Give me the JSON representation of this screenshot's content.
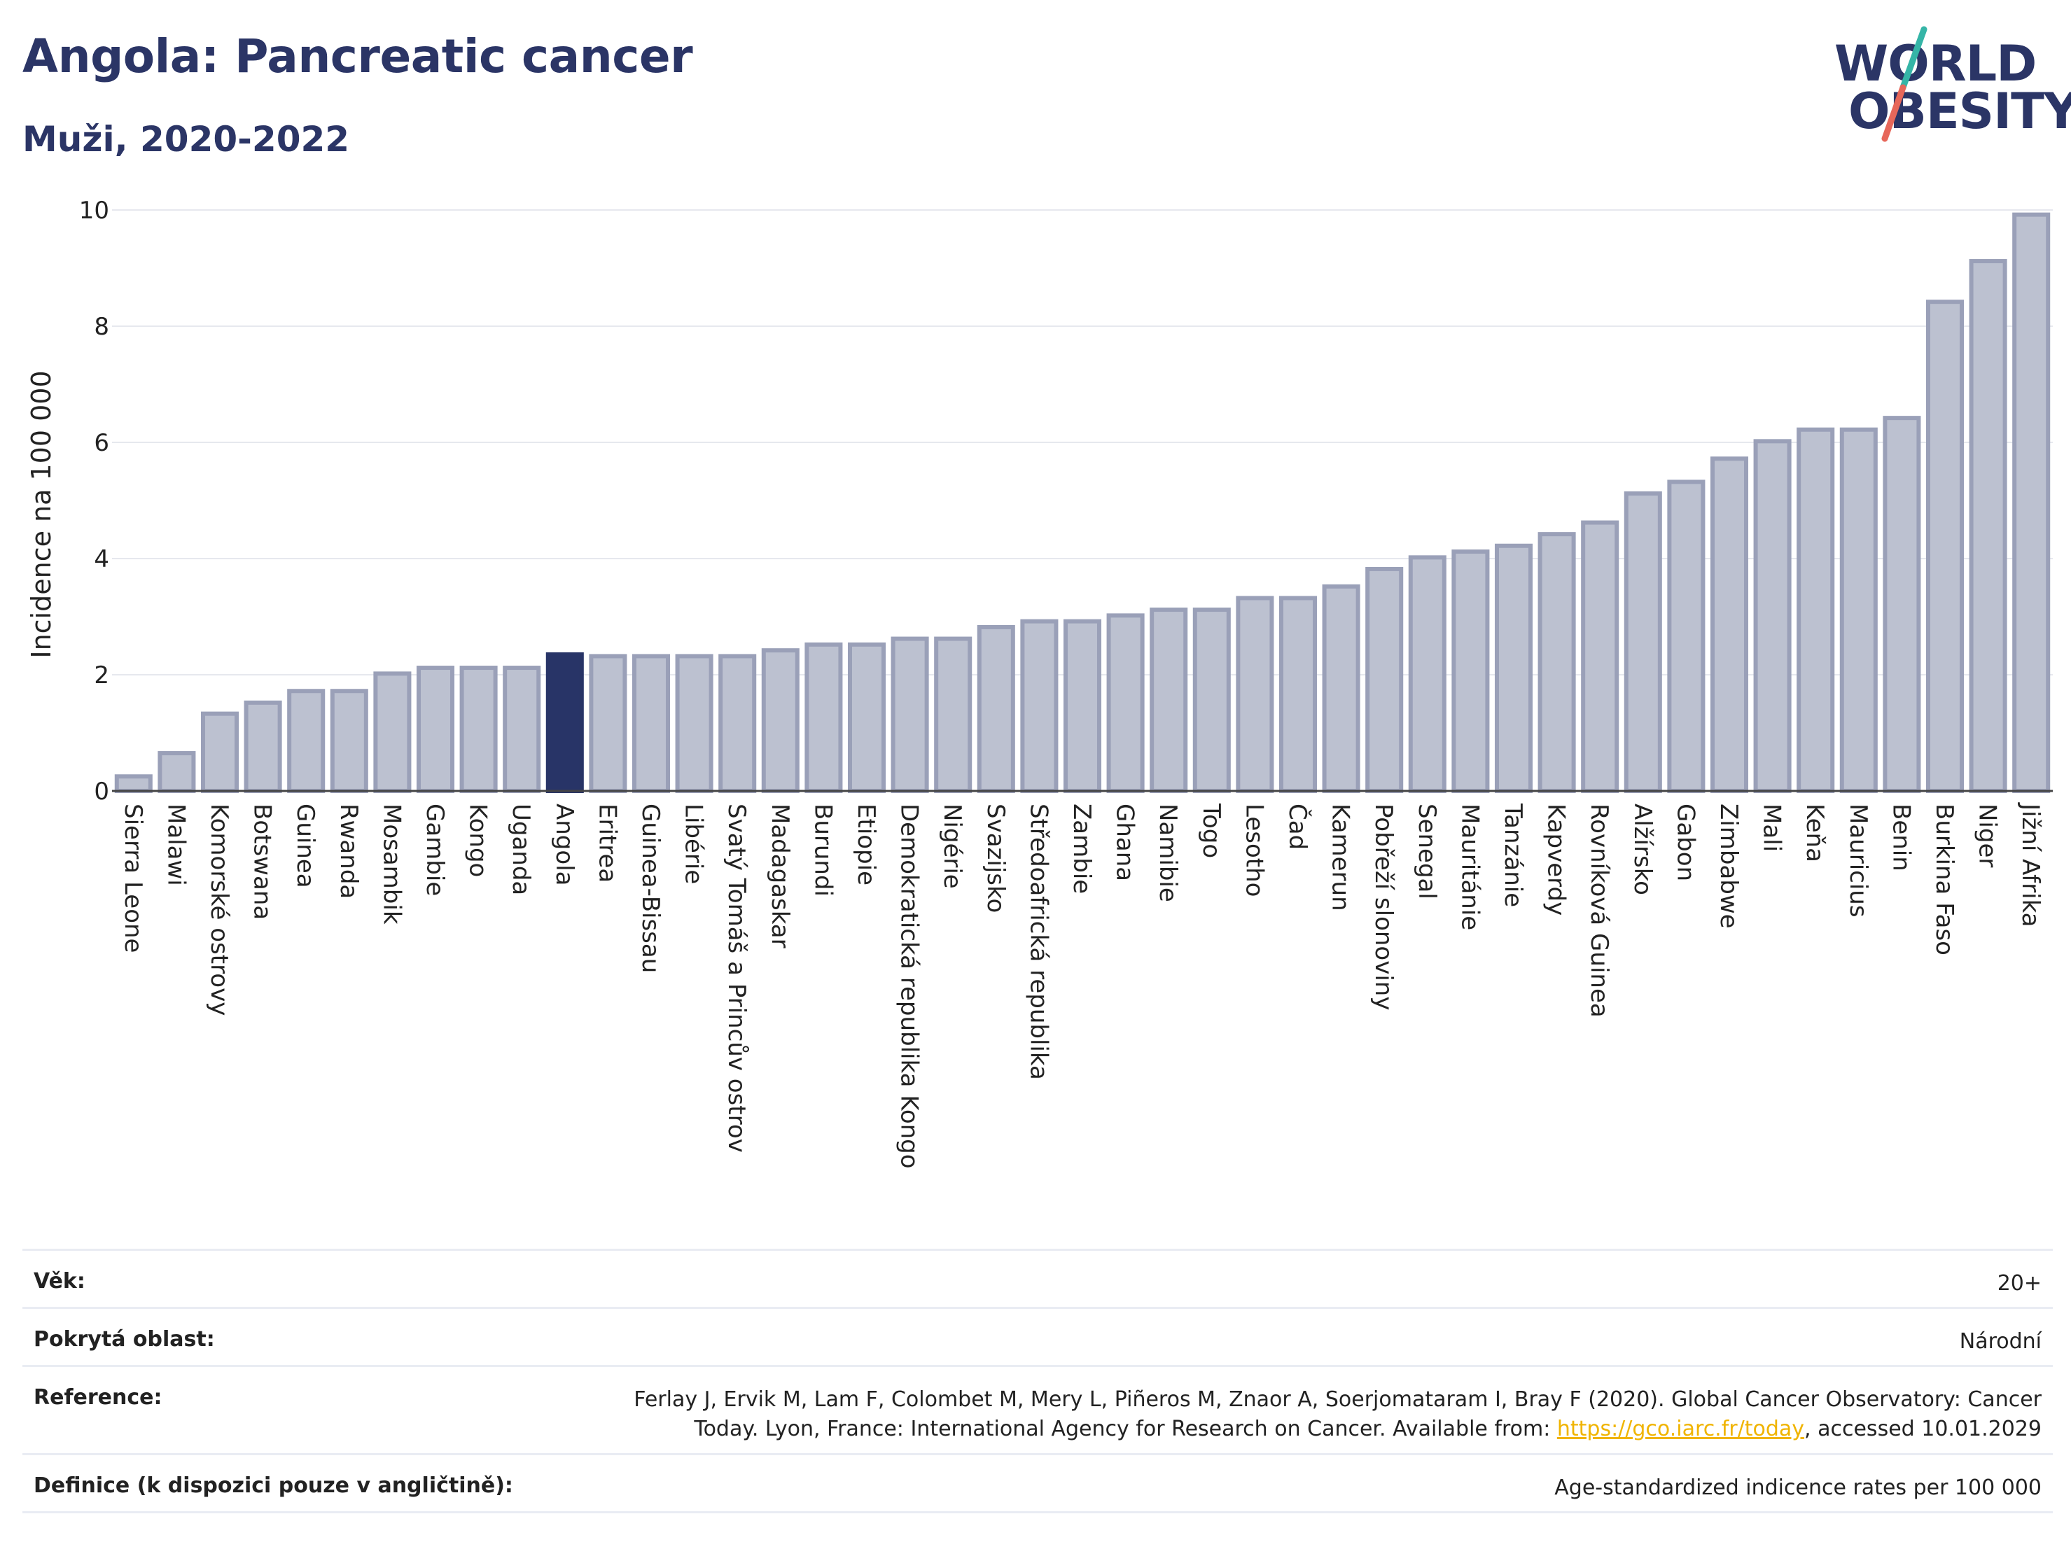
{
  "title": "Angola: Pancreatic cancer",
  "subtitle": "Muži, 2020-2022",
  "logo": {
    "line1": "WORLD",
    "line2": "OBESITY",
    "colors": {
      "text": "#2b3566",
      "slash_top": "#35b5a7",
      "slash_bottom": "#e7675a"
    }
  },
  "colors": {
    "bar": "#bcc1d0",
    "bar_border": "#9aa0b8",
    "highlight": "#283467",
    "grid": "#e6e8ee"
  },
  "chart_data": {
    "type": "bar",
    "ylabel": "Incidence na 100 000",
    "xlabel": "",
    "ylim": [
      0,
      10
    ],
    "yticks": [
      "0",
      "2",
      "4",
      "6",
      "8",
      "10"
    ],
    "grid": true,
    "highlight": "Angola",
    "categories": [
      "Sierra Leone",
      "Malawi",
      "Komorské ostrovy",
      "Botswana",
      "Guinea",
      "Rwanda",
      "Mosambik",
      "Gambie",
      "Kongo",
      "Uganda",
      "Angola",
      "Eritrea",
      "Guinea-Bissau",
      "Libérie",
      "Svatý Tomáš a Princův ostrov",
      "Madagaskar",
      "Burundi",
      "Etiopie",
      "Demokratická republika Kongo",
      "Nigérie",
      "Svazijsko",
      "Středoafrická republika",
      "Zambie",
      "Ghana",
      "Namibie",
      "Togo",
      "Lesotho",
      "Čad",
      "Kamerun",
      "Pobřeží slonoviny",
      "Senegal",
      "Mauritánie",
      "Tanzánie",
      "Kapverdy",
      "Rovníková Guinea",
      "Alžírsko",
      "Gabon",
      "Zimbabwe",
      "Mali",
      "Keňa",
      "Mauricius",
      "Benin",
      "Burkina Faso",
      "Niger",
      "Jižní Afrika"
    ],
    "values": [
      0.25,
      0.65,
      1.33,
      1.52,
      1.72,
      1.72,
      2.02,
      2.12,
      2.12,
      2.12,
      2.35,
      2.32,
      2.32,
      2.32,
      2.32,
      2.42,
      2.52,
      2.52,
      2.62,
      2.62,
      2.82,
      2.92,
      2.92,
      3.02,
      3.12,
      3.12,
      3.32,
      3.32,
      3.52,
      3.82,
      4.02,
      4.12,
      4.22,
      4.42,
      4.62,
      5.12,
      5.32,
      5.72,
      6.02,
      6.22,
      6.22,
      6.42,
      8.42,
      9.12,
      9.92
    ]
  },
  "info": [
    {
      "key": "Věk:",
      "value": "20+"
    },
    {
      "key": "Pokrytá oblast:",
      "value": "Národní"
    },
    {
      "key": "Reference:",
      "value_line1": "Ferlay J, Ervik M, Lam F, Colombet M, Mery L, Piñeros M, Znaor A, Soerjomataram I, Bray F (2020). Global Cancer Observatory: Cancer",
      "value_line2_pre": "Today. Lyon, France: International Agency for Research on Cancer. Available from: ",
      "link": "https://gco.iarc.fr/today",
      "value_line2_post": ", accessed 10.01.2029"
    },
    {
      "key": "Definice (k dispozici pouze v angličtině):",
      "value": "Age-standardized indicence rates per 100 000"
    }
  ]
}
